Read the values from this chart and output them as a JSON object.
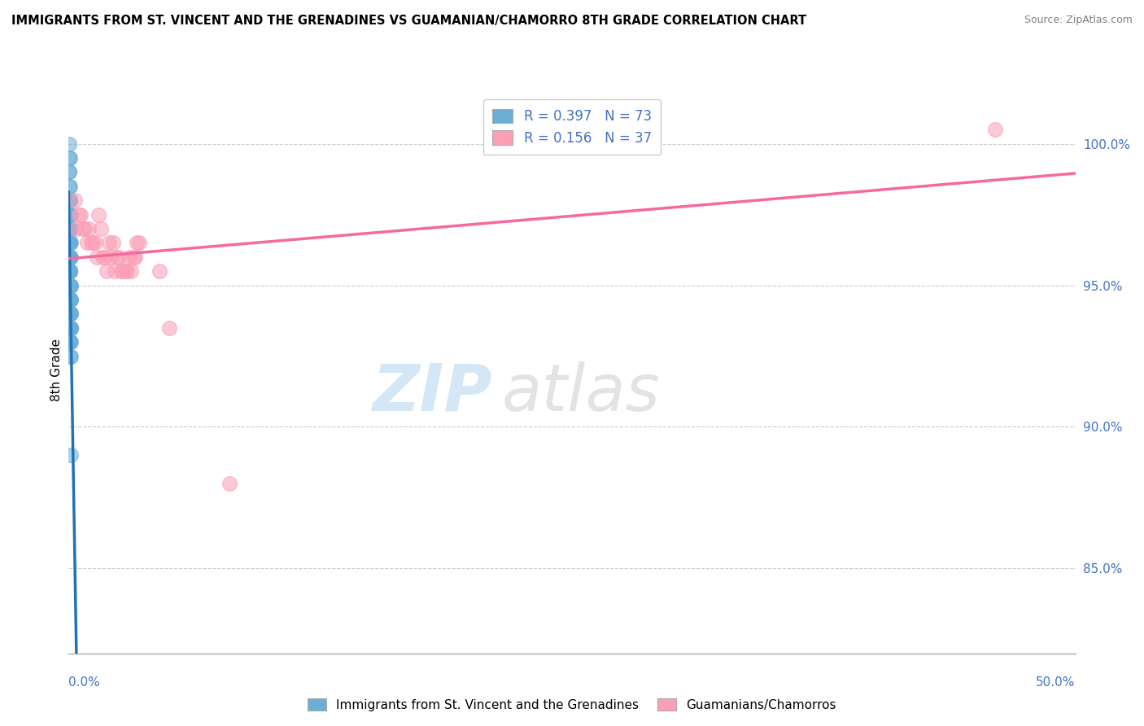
{
  "title": "IMMIGRANTS FROM ST. VINCENT AND THE GRENADINES VS GUAMANIAN/CHAMORRO 8TH GRADE CORRELATION CHART",
  "source": "Source: ZipAtlas.com",
  "ylabel": "8th Grade",
  "xlim": [
    0.0,
    50.0
  ],
  "ylim": [
    82.0,
    102.0
  ],
  "blue_R": 0.397,
  "blue_N": 73,
  "pink_R": 0.156,
  "pink_N": 37,
  "blue_color": "#6baed6",
  "pink_color": "#fa9fb5",
  "blue_line_color": "#2171b5",
  "pink_line_color": "#f768a1",
  "legend_label_blue": "Immigrants from St. Vincent and the Grenadines",
  "legend_label_pink": "Guamanians/Chamorros",
  "watermark_zip": "ZIP",
  "watermark_atlas": "atlas",
  "y_tick_vals": [
    85.0,
    90.0,
    95.0,
    100.0
  ],
  "y_tick_labels": [
    "85.0%",
    "90.0%",
    "95.0%",
    "100.0%"
  ],
  "blue_x": [
    0.05,
    0.08,
    0.1,
    0.12,
    0.05,
    0.07,
    0.03,
    0.04,
    0.06,
    0.09,
    0.11,
    0.08,
    0.06,
    0.04,
    0.05,
    0.07,
    0.03,
    0.02,
    0.08,
    0.1,
    0.06,
    0.04,
    0.09,
    0.05,
    0.07,
    0.11,
    0.08,
    0.06,
    0.04,
    0.03,
    0.1,
    0.12,
    0.09,
    0.07,
    0.05,
    0.06,
    0.08,
    0.04,
    0.03,
    0.07,
    0.09,
    0.11,
    0.05,
    0.06,
    0.08,
    0.04,
    0.07,
    0.03,
    0.05,
    0.09,
    0.06,
    0.08,
    0.1,
    0.04,
    0.07,
    0.05,
    0.06,
    0.08,
    0.03,
    0.04,
    0.09,
    0.07,
    0.05,
    0.06,
    0.08,
    0.1,
    0.04,
    0.07,
    0.05,
    0.06,
    0.08,
    0.03,
    0.09
  ],
  "blue_y": [
    99.5,
    98.0,
    97.5,
    97.0,
    98.5,
    97.0,
    100.0,
    99.0,
    96.5,
    96.0,
    96.5,
    97.5,
    98.0,
    99.0,
    97.0,
    96.0,
    98.5,
    99.5,
    95.5,
    95.0,
    96.5,
    97.5,
    95.0,
    96.0,
    94.5,
    94.0,
    95.5,
    96.0,
    97.0,
    98.0,
    94.5,
    93.5,
    94.0,
    95.0,
    96.5,
    95.5,
    94.0,
    96.5,
    97.5,
    95.5,
    94.5,
    93.5,
    96.0,
    95.5,
    94.0,
    96.5,
    94.0,
    97.0,
    95.5,
    93.5,
    94.5,
    94.0,
    93.0,
    95.5,
    93.5,
    94.5,
    94.0,
    93.5,
    96.0,
    95.5,
    93.5,
    93.0,
    94.5,
    94.0,
    93.0,
    92.5,
    95.5,
    93.0,
    94.0,
    93.5,
    92.5,
    95.0,
    89.0
  ],
  "pink_x": [
    0.5,
    1.0,
    1.5,
    2.0,
    2.5,
    3.0,
    3.5,
    0.3,
    0.8,
    1.2,
    1.8,
    2.2,
    2.8,
    3.2,
    0.6,
    1.1,
    1.6,
    2.1,
    2.6,
    3.1,
    0.4,
    0.9,
    1.4,
    1.9,
    2.4,
    2.9,
    3.4,
    0.7,
    1.3,
    1.7,
    2.3,
    2.7,
    3.3,
    5.0,
    4.5,
    46.0,
    8.0
  ],
  "pink_y": [
    97.5,
    97.0,
    97.5,
    96.5,
    96.0,
    96.0,
    96.5,
    98.0,
    97.0,
    96.5,
    96.0,
    96.5,
    95.5,
    96.0,
    97.5,
    96.5,
    97.0,
    96.0,
    95.5,
    95.5,
    97.0,
    96.5,
    96.0,
    95.5,
    96.0,
    95.5,
    96.5,
    97.0,
    96.5,
    96.0,
    95.5,
    95.5,
    96.0,
    93.5,
    95.5,
    100.5,
    88.0
  ]
}
